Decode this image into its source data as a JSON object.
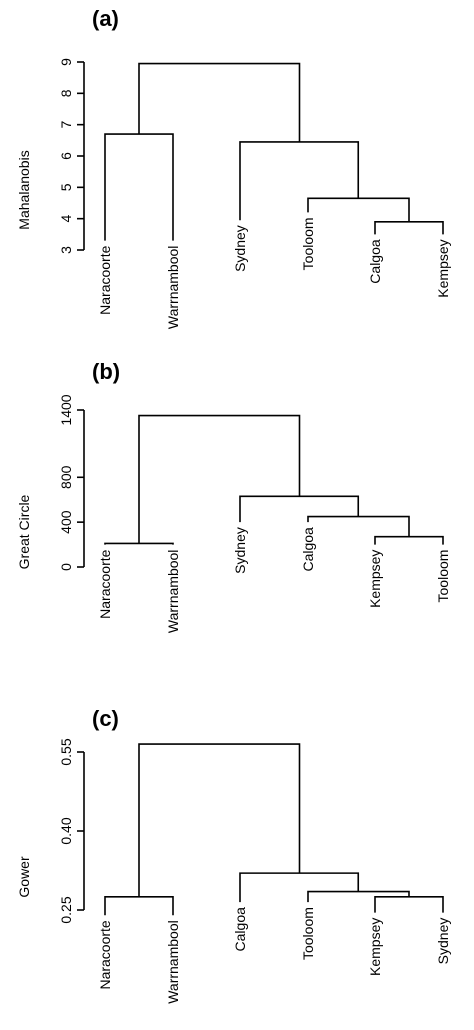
{
  "chart_data": [
    {
      "type": "dendrogram",
      "panel_label": "(a)",
      "ylabel": "Mahalanobis",
      "ylim": [
        3,
        9
      ],
      "yticks": [
        3,
        4,
        5,
        6,
        7,
        8,
        9
      ],
      "ytick_labels": [
        "3",
        "4",
        "5",
        "6",
        "7",
        "8",
        "9"
      ],
      "leaves": [
        {
          "label": "Naracoorte",
          "x": 1,
          "y": 3.3
        },
        {
          "label": "Warrnambool",
          "x": 2,
          "y": 3.3
        },
        {
          "label": "Sydney",
          "x": 3,
          "y": 3.95
        },
        {
          "label": "Tooloom",
          "x": 4,
          "y": 4.2
        },
        {
          "label": "Calgoa",
          "x": 5,
          "y": 3.5
        },
        {
          "label": "Kempsey",
          "x": 6,
          "y": 3.5
        }
      ],
      "merges": [
        {
          "left": [
            5,
            3.5
          ],
          "right": [
            6,
            3.5
          ],
          "height": 3.9,
          "x": 5.5
        },
        {
          "left": [
            4,
            4.2
          ],
          "right": [
            5.5,
            3.9
          ],
          "height": 4.65,
          "x": 4.75
        },
        {
          "left": [
            3,
            3.95
          ],
          "right": [
            4.75,
            4.65
          ],
          "height": 6.45,
          "x": 3.875
        },
        {
          "left": [
            1,
            3.3
          ],
          "right": [
            2,
            3.3
          ],
          "height": 6.7,
          "x": 1.5
        },
        {
          "left": [
            1.5,
            6.7
          ],
          "right": [
            3.875,
            6.45
          ],
          "height": 8.95,
          "x": 2.6875
        }
      ]
    },
    {
      "type": "dendrogram",
      "panel_label": "(b)",
      "ylabel": "Great Circle",
      "ylim": [
        0,
        1400
      ],
      "yticks": [
        0,
        400,
        800,
        1400
      ],
      "ytick_labels": [
        "0",
        "400",
        "800",
        "1400"
      ],
      "leaves": [
        {
          "label": "Naracoorte",
          "x": 1,
          "y": 200
        },
        {
          "label": "Warrnambool",
          "x": 2,
          "y": 200
        },
        {
          "label": "Sydney",
          "x": 3,
          "y": 400
        },
        {
          "label": "Calgoa",
          "x": 4,
          "y": 400
        },
        {
          "label": "Kempsey",
          "x": 5,
          "y": 200
        },
        {
          "label": "Tooloom",
          "x": 6,
          "y": 200
        }
      ],
      "merges": [
        {
          "left": [
            5,
            200
          ],
          "right": [
            6,
            200
          ],
          "height": 270,
          "x": 5.5
        },
        {
          "left": [
            4,
            400
          ],
          "right": [
            5.5,
            270
          ],
          "height": 450,
          "x": 4.75
        },
        {
          "left": [
            3,
            400
          ],
          "right": [
            4.75,
            450
          ],
          "height": 630,
          "x": 3.875
        },
        {
          "left": [
            1,
            200
          ],
          "right": [
            2,
            200
          ],
          "height": 210,
          "x": 1.5
        },
        {
          "left": [
            1.5,
            210
          ],
          "right": [
            3.875,
            630
          ],
          "height": 1350,
          "x": 2.6875
        }
      ]
    },
    {
      "type": "dendrogram",
      "panel_label": "(c)",
      "ylabel": "Gower",
      "ylim": [
        0.25,
        0.55
      ],
      "yticks": [
        0.25,
        0.4,
        0.55
      ],
      "ytick_labels": [
        "0.25",
        "0.40",
        "0.55"
      ],
      "leaves": [
        {
          "label": "Naracoorte",
          "x": 1,
          "y": 0.24
        },
        {
          "label": "Warrnambool",
          "x": 2,
          "y": 0.24
        },
        {
          "label": "Calgoa",
          "x": 3,
          "y": 0.265
        },
        {
          "label": "Tooloom",
          "x": 4,
          "y": 0.265
        },
        {
          "label": "Kempsey",
          "x": 5,
          "y": 0.245
        },
        {
          "label": "Sydney",
          "x": 6,
          "y": 0.245
        }
      ],
      "merges": [
        {
          "left": [
            5,
            0.245
          ],
          "right": [
            6,
            0.245
          ],
          "height": 0.275,
          "x": 5.5
        },
        {
          "left": [
            4,
            0.265
          ],
          "right": [
            5.5,
            0.275
          ],
          "height": 0.285,
          "x": 4.75
        },
        {
          "left": [
            3,
            0.265
          ],
          "right": [
            4.75,
            0.285
          ],
          "height": 0.32,
          "x": 3.875
        },
        {
          "left": [
            1,
            0.24
          ],
          "right": [
            2,
            0.24
          ],
          "height": 0.275,
          "x": 1.5
        },
        {
          "left": [
            1.5,
            0.275
          ],
          "right": [
            3.875,
            0.32
          ],
          "height": 0.565,
          "x": 2.6875
        }
      ]
    }
  ]
}
